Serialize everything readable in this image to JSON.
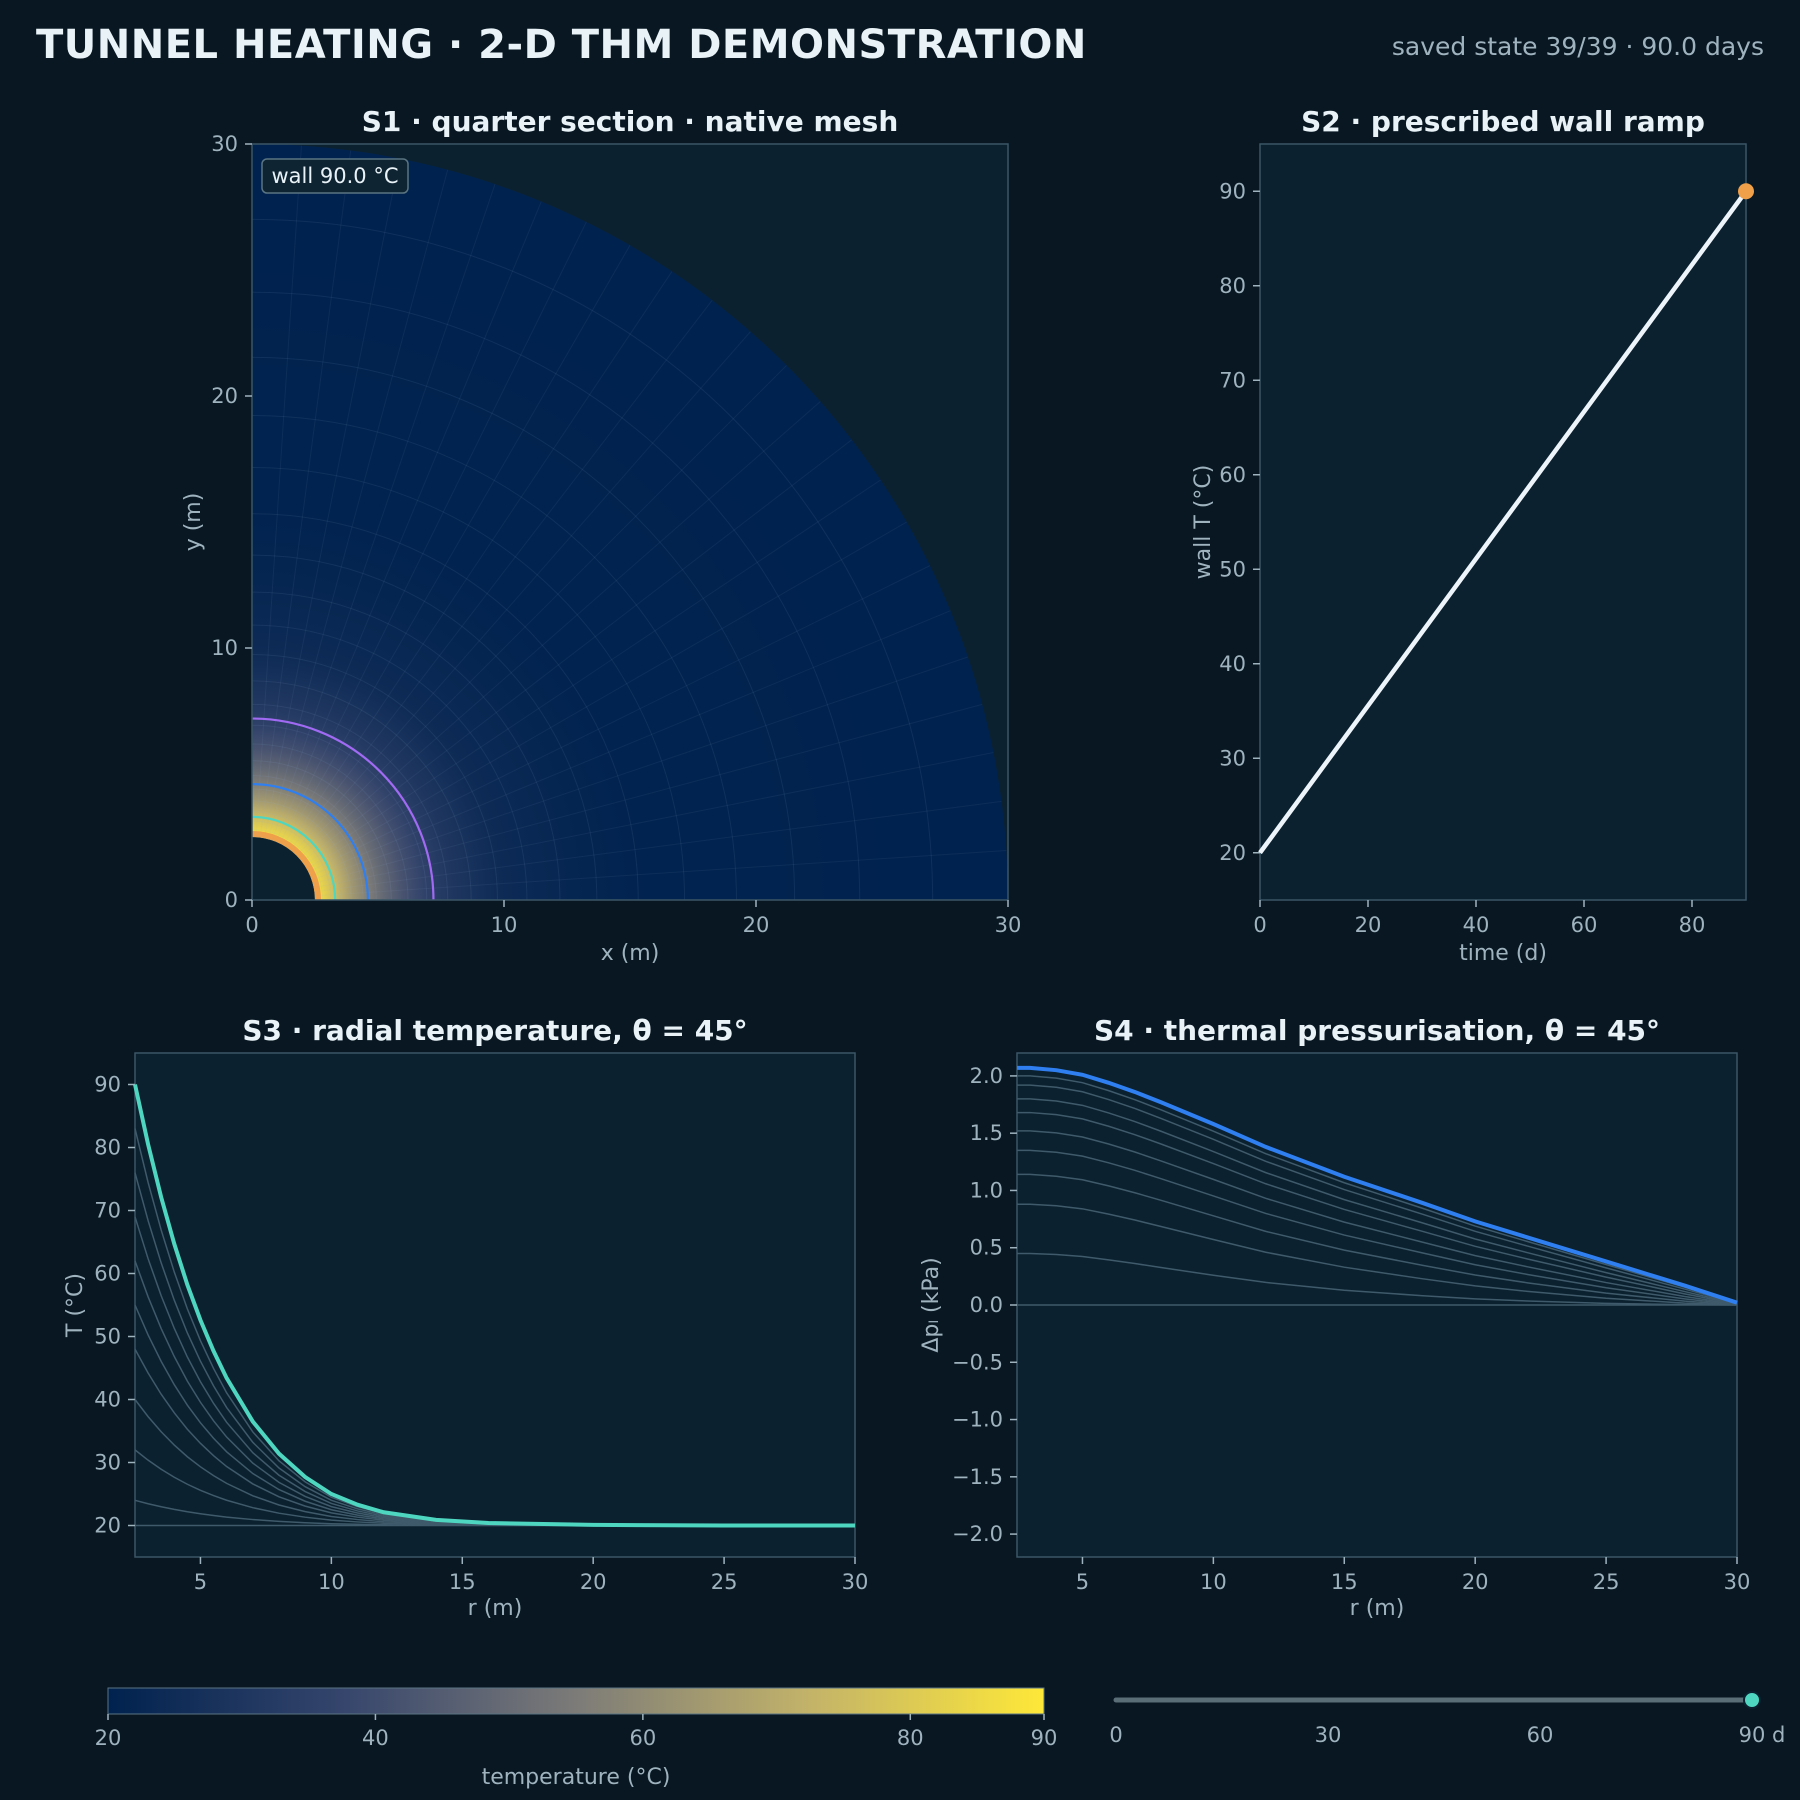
{
  "header": {
    "title": "TUNNEL HEATING · 2-D THM DEMONSTRATION",
    "status": "saved state 39/39 · 90.0 days"
  },
  "colors": {
    "background": "#081722",
    "panel": "#0b2130",
    "frame": "#3a5666",
    "accent_teal": "#4fd6c0",
    "accent_blue": "#2f7ff0",
    "accent_purple": "#a06af2",
    "marker_orange": "#f0a048",
    "grey_curve": "#3f5a6a"
  },
  "colorbar": {
    "label": "temperature  (°C)",
    "ticks": [
      "20",
      "40",
      "60",
      "80",
      "90"
    ],
    "range": [
      20,
      90
    ],
    "colormap": "cividis"
  },
  "time_slider": {
    "ticks": [
      "0",
      "30",
      "60",
      "90 d"
    ],
    "value_days": 90,
    "max_days": 90
  },
  "chart_data": [
    {
      "id": "S1",
      "type": "heatmap",
      "title": "S1 · quarter section · native mesh",
      "xlabel": "x (m)",
      "ylabel": "y (m)",
      "xlim": [
        0,
        30
      ],
      "ylim": [
        0,
        30
      ],
      "xticks": [
        "0",
        "10",
        "20",
        "30"
      ],
      "yticks": [
        "0",
        "10",
        "20",
        "30"
      ],
      "annotation": "wall 90.0 °C",
      "tunnel_radius_m": 2.5,
      "outer_radius_m": 30,
      "field": "temperature",
      "radial_profile": {
        "r": [
          2.5,
          3,
          4,
          5,
          6,
          7,
          8,
          10,
          15,
          30
        ],
        "T": [
          90,
          80,
          64,
          51,
          42,
          35,
          30,
          24,
          20.5,
          20
        ]
      },
      "contours": [
        {
          "radius_m": 3.3,
          "color": "#4fd6c0"
        },
        {
          "radius_m": 4.6,
          "color": "#2f7ff0"
        },
        {
          "radius_m": 7.2,
          "color": "#a06af2"
        }
      ]
    },
    {
      "id": "S2",
      "type": "line",
      "title": "S2 · prescribed wall ramp",
      "xlabel": "time (d)",
      "ylabel": "wall T (°C)",
      "xlim": [
        0,
        90
      ],
      "ylim": [
        15,
        95
      ],
      "xticks": [
        "0",
        "20",
        "40",
        "60",
        "80"
      ],
      "yticks": [
        "20",
        "30",
        "40",
        "50",
        "60",
        "70",
        "80",
        "90"
      ],
      "x": [
        0,
        90
      ],
      "y": [
        20,
        90
      ],
      "marker": {
        "x": 90,
        "y": 90
      }
    },
    {
      "id": "S3",
      "type": "line",
      "title": "S3 · radial temperature, θ = 45°",
      "xlabel": "r (m)",
      "ylabel": "T (°C)",
      "xlim": [
        2.5,
        30
      ],
      "ylim": [
        15,
        95
      ],
      "xticks": [
        "5",
        "10",
        "15",
        "20",
        "25",
        "30"
      ],
      "yticks": [
        "20",
        "30",
        "40",
        "50",
        "60",
        "70",
        "80",
        "90"
      ],
      "wall_temps_history": [
        24,
        32,
        40,
        48,
        55,
        62,
        69,
        76,
        83
      ],
      "current": {
        "r": [
          2.5,
          3,
          3.5,
          4,
          4.5,
          5,
          5.5,
          6,
          7,
          8,
          9,
          10,
          11,
          12,
          14,
          16,
          20,
          25,
          30
        ],
        "T": [
          90,
          80.5,
          72.1,
          64.7,
          58.2,
          52.6,
          47.7,
          43.4,
          36.5,
          31.4,
          27.7,
          25.0,
          23.3,
          22.1,
          20.9,
          20.4,
          20.1,
          20.0,
          20.0
        ]
      }
    },
    {
      "id": "S4",
      "type": "line",
      "title": "S4 · thermal pressurisation, θ = 45°",
      "xlabel": "r (m)",
      "ylabel": "Δpₗ (kPa)",
      "xlim": [
        2.5,
        30
      ],
      "ylim": [
        -2.2,
        2.2
      ],
      "xticks": [
        "5",
        "10",
        "15",
        "20",
        "25",
        "30"
      ],
      "yticks": [
        "2.0",
        "1.5",
        "1.0",
        "0.5",
        "0.0",
        "−0.5",
        "−1.0",
        "−1.5",
        "−2.0"
      ],
      "history_peaks": [
        0.45,
        0.88,
        1.14,
        1.35,
        1.52,
        1.68,
        1.8,
        1.92,
        2.0
      ],
      "current": {
        "r": [
          2.5,
          3,
          4,
          5,
          6,
          7,
          8,
          10,
          12,
          15,
          18,
          20,
          22,
          25,
          28,
          30
        ],
        "dp": [
          2.07,
          2.07,
          2.05,
          2.01,
          1.94,
          1.86,
          1.77,
          1.58,
          1.38,
          1.12,
          0.89,
          0.73,
          0.59,
          0.38,
          0.17,
          0.02
        ]
      }
    }
  ]
}
